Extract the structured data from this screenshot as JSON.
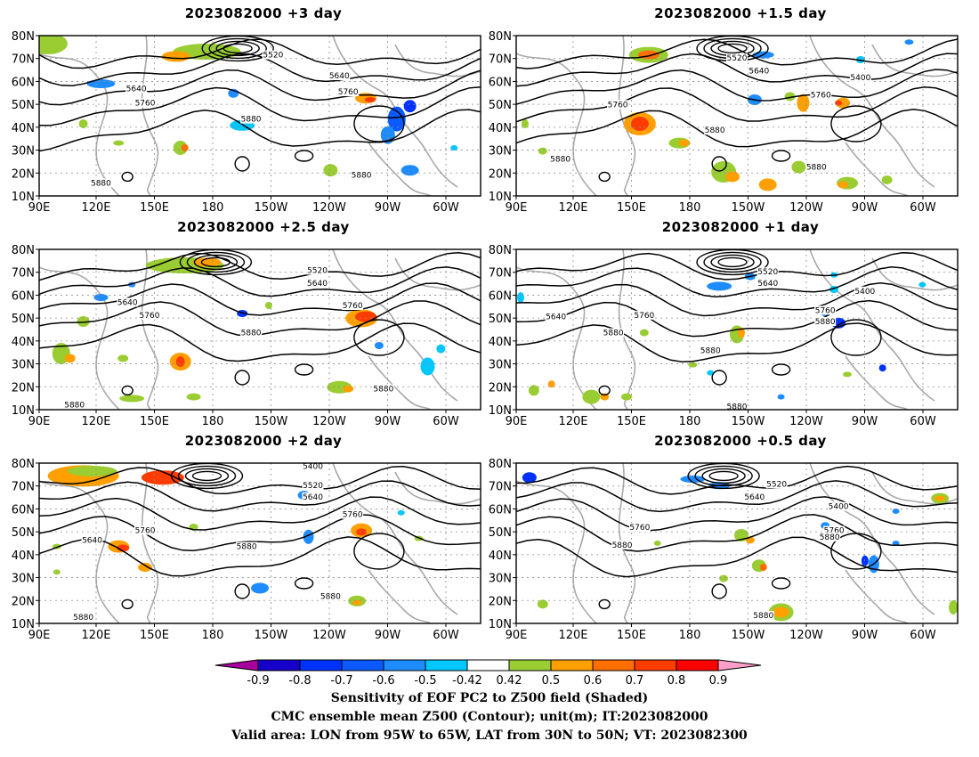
{
  "panels": [
    {
      "title": "2023082000  +3 day"
    },
    {
      "title": "2023082000  +1.5 day"
    },
    {
      "title": "2023082000  +2.5 day"
    },
    {
      "title": "2023082000  +1 day"
    },
    {
      "title": "2023082000  +2 day"
    },
    {
      "title": "2023082000  +0.5 day"
    }
  ],
  "map": {
    "lat_labels": [
      "80N",
      "70N",
      "60N",
      "50N",
      "40N",
      "30N",
      "20N",
      "10N"
    ],
    "lon_labels": [
      "90E",
      "120E",
      "150E",
      "180",
      "150W",
      "120W",
      "90W",
      "60W"
    ],
    "lat_range": [
      10,
      80
    ],
    "lon_range": [
      "90E",
      "45W"
    ]
  },
  "contour_labels": [
    [
      {
        "t": "5520",
        "lon": 0.53,
        "lat": 0.88
      },
      {
        "t": "5640",
        "lon": 0.68,
        "lat": 0.75
      },
      {
        "t": "5640",
        "lon": 0.22,
        "lat": 0.67
      },
      {
        "t": "5760",
        "lon": 0.24,
        "lat": 0.58
      },
      {
        "t": "5760",
        "lon": 0.7,
        "lat": 0.65
      },
      {
        "t": "5880",
        "lon": 0.48,
        "lat": 0.48
      },
      {
        "t": "5880",
        "lon": 0.14,
        "lat": 0.08
      },
      {
        "t": "5880",
        "lon": 0.73,
        "lat": 0.13
      }
    ],
    [
      {
        "t": "5520",
        "lon": 0.5,
        "lat": 0.86
      },
      {
        "t": "5640",
        "lon": 0.55,
        "lat": 0.78
      },
      {
        "t": "5400",
        "lon": 0.78,
        "lat": 0.74
      },
      {
        "t": "5760",
        "lon": 0.69,
        "lat": 0.63
      },
      {
        "t": "5760",
        "lon": 0.23,
        "lat": 0.57
      },
      {
        "t": "5880",
        "lon": 0.45,
        "lat": 0.41
      },
      {
        "t": "5880",
        "lon": 0.1,
        "lat": 0.23
      },
      {
        "t": "5880",
        "lon": 0.68,
        "lat": 0.18
      }
    ],
    [
      {
        "t": "5520",
        "lon": 0.63,
        "lat": 0.87
      },
      {
        "t": "5640",
        "lon": 0.63,
        "lat": 0.79
      },
      {
        "t": "5640",
        "lon": 0.2,
        "lat": 0.67
      },
      {
        "t": "5760",
        "lon": 0.25,
        "lat": 0.59
      },
      {
        "t": "5760",
        "lon": 0.71,
        "lat": 0.65
      },
      {
        "t": "5880",
        "lon": 0.48,
        "lat": 0.48
      },
      {
        "t": "5880",
        "lon": 0.78,
        "lat": 0.13
      },
      {
        "t": "5880",
        "lon": 0.08,
        "lat": 0.03
      }
    ],
    [
      {
        "t": "5520",
        "lon": 0.57,
        "lat": 0.86
      },
      {
        "t": "5640",
        "lon": 0.57,
        "lat": 0.79
      },
      {
        "t": "5400",
        "lon": 0.79,
        "lat": 0.74
      },
      {
        "t": "5760",
        "lon": 0.7,
        "lat": 0.62
      },
      {
        "t": "5880",
        "lon": 0.7,
        "lat": 0.55
      },
      {
        "t": "5640",
        "lon": 0.09,
        "lat": 0.58
      },
      {
        "t": "5760",
        "lon": 0.29,
        "lat": 0.59
      },
      {
        "t": "5880",
        "lon": 0.22,
        "lat": 0.48
      },
      {
        "t": "5880",
        "lon": 0.44,
        "lat": 0.37
      },
      {
        "t": "5880",
        "lon": 0.5,
        "lat": 0.02
      }
    ],
    [
      {
        "t": "5400",
        "lon": 0.62,
        "lat": 0.98
      },
      {
        "t": "5520",
        "lon": 0.62,
        "lat": 0.86
      },
      {
        "t": "5640",
        "lon": 0.62,
        "lat": 0.79
      },
      {
        "t": "5760",
        "lon": 0.71,
        "lat": 0.68
      },
      {
        "t": "5640",
        "lon": 0.12,
        "lat": 0.52
      },
      {
        "t": "5760",
        "lon": 0.24,
        "lat": 0.58
      },
      {
        "t": "5880",
        "lon": 0.47,
        "lat": 0.48
      },
      {
        "t": "5880",
        "lon": 0.66,
        "lat": 0.17
      },
      {
        "t": "5880",
        "lon": 0.1,
        "lat": 0.04
      }
    ],
    [
      {
        "t": "5520",
        "lon": 0.59,
        "lat": 0.87
      },
      {
        "t": "5640",
        "lon": 0.54,
        "lat": 0.79
      },
      {
        "t": "5400",
        "lon": 0.73,
        "lat": 0.73
      },
      {
        "t": "5760",
        "lon": 0.28,
        "lat": 0.6
      },
      {
        "t": "5760",
        "lon": 0.72,
        "lat": 0.58
      },
      {
        "t": "5880",
        "lon": 0.24,
        "lat": 0.49
      },
      {
        "t": "5880",
        "lon": 0.71,
        "lat": 0.54
      },
      {
        "t": "5880",
        "lon": 0.56,
        "lat": 0.05
      }
    ]
  ],
  "colorbar": {
    "labels": [
      "-0.9",
      "-0.8",
      "-0.7",
      "-0.6",
      "-0.5",
      "-0.42",
      "0.42",
      "0.5",
      "0.6",
      "0.7",
      "0.8",
      "0.9"
    ],
    "colors": [
      "#a8009f",
      "#1400c8",
      "#0032ff",
      "#0a5aff",
      "#1e8cff",
      "#00c8ff",
      "#ffffff",
      "#9acd32",
      "#ffa000",
      "#ff6e00",
      "#ff3c00",
      "#ff0000",
      "#ff9ec8"
    ]
  },
  "colors": {
    "contour": "#000000",
    "coast": "#a9a9a9",
    "grid": "#8c8c8c"
  },
  "caption": {
    "line1": "Sensitivity of EOF PC2 to Z500 field (Shaded)",
    "line2": "CMC ensemble mean Z500 (Contour); unit(m); IT:2023082000",
    "line3": "Valid area: LON from 95W to 65W, LAT from 30N to 50N; VT: 2023082300"
  }
}
